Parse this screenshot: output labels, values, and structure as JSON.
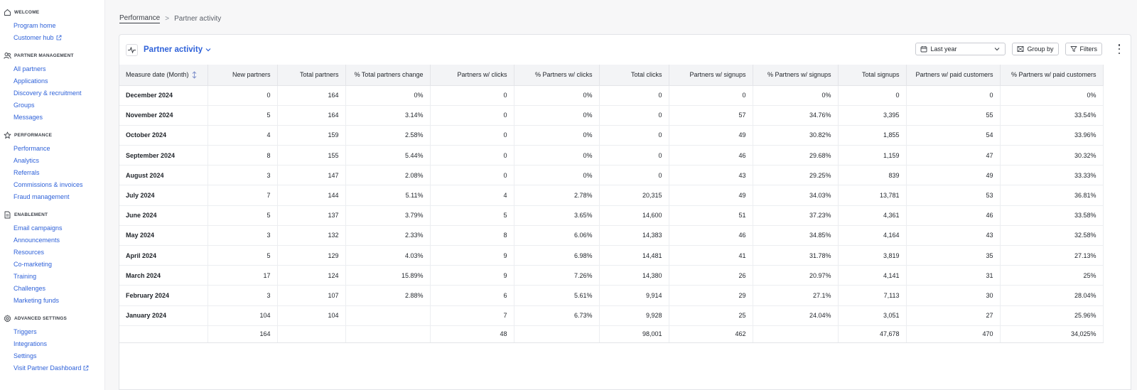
{
  "sidebar": {
    "sections": [
      {
        "title": "WELCOME",
        "icon": "home-icon",
        "items": [
          {
            "label": "Program home",
            "ext": false
          },
          {
            "label": "Customer hub",
            "ext": true
          }
        ]
      },
      {
        "title": "PARTNER MANAGEMENT",
        "icon": "users-icon",
        "items": [
          {
            "label": "All partners",
            "ext": false
          },
          {
            "label": "Applications",
            "ext": false
          },
          {
            "label": "Discovery & recruitment",
            "ext": false
          },
          {
            "label": "Groups",
            "ext": false
          },
          {
            "label": "Messages",
            "ext": false
          }
        ]
      },
      {
        "title": "PERFORMANCE",
        "icon": "star-icon",
        "items": [
          {
            "label": "Performance",
            "ext": false
          },
          {
            "label": "Analytics",
            "ext": false
          },
          {
            "label": "Referrals",
            "ext": false
          },
          {
            "label": "Commissions & invoices",
            "ext": false
          },
          {
            "label": "Fraud management",
            "ext": false
          }
        ]
      },
      {
        "title": "ENABLEMENT",
        "icon": "document-icon",
        "items": [
          {
            "label": "Email campaigns",
            "ext": false
          },
          {
            "label": "Announcements",
            "ext": false
          },
          {
            "label": "Resources",
            "ext": false
          },
          {
            "label": "Co-marketing",
            "ext": false
          },
          {
            "label": "Training",
            "ext": false
          },
          {
            "label": "Challenges",
            "ext": false
          },
          {
            "label": "Marketing funds",
            "ext": false
          }
        ]
      },
      {
        "title": "ADVANCED SETTINGS",
        "icon": "gear-icon",
        "items": [
          {
            "label": "Triggers",
            "ext": false
          },
          {
            "label": "Integrations",
            "ext": false
          },
          {
            "label": "Settings",
            "ext": false
          },
          {
            "label": "Visit Partner Dashboard",
            "ext": true
          }
        ]
      }
    ]
  },
  "breadcrumb": {
    "parent": "Performance",
    "separator": ">",
    "current": "Partner activity"
  },
  "report": {
    "title": "Partner activity"
  },
  "controls": {
    "date_range": "Last year",
    "group_by": "Group by",
    "filters": "Filters"
  },
  "colors": {
    "accent": "#2f62d9",
    "header_bg": "#f3f4f6"
  },
  "table": {
    "columns": [
      "Measure date (Month)",
      "New partners",
      "Total partners",
      "% Total partners change",
      "Partners w/ clicks",
      "% Partners w/ clicks",
      "Total clicks",
      "Partners w/ signups",
      "% Partners w/ signups",
      "Total signups",
      "Partners w/ paid customers",
      "% Partners w/ paid customers"
    ],
    "rows": [
      [
        "December 2024",
        "0",
        "164",
        "0%",
        "0",
        "0%",
        "0",
        "0",
        "0%",
        "0",
        "0",
        "0%"
      ],
      [
        "November 2024",
        "5",
        "164",
        "3.14%",
        "0",
        "0%",
        "0",
        "57",
        "34.76%",
        "3,395",
        "55",
        "33.54%"
      ],
      [
        "October 2024",
        "4",
        "159",
        "2.58%",
        "0",
        "0%",
        "0",
        "49",
        "30.82%",
        "1,855",
        "54",
        "33.96%"
      ],
      [
        "September 2024",
        "8",
        "155",
        "5.44%",
        "0",
        "0%",
        "0",
        "46",
        "29.68%",
        "1,159",
        "47",
        "30.32%"
      ],
      [
        "August 2024",
        "3",
        "147",
        "2.08%",
        "0",
        "0%",
        "0",
        "43",
        "29.25%",
        "839",
        "49",
        "33.33%"
      ],
      [
        "July 2024",
        "7",
        "144",
        "5.11%",
        "4",
        "2.78%",
        "20,315",
        "49",
        "34.03%",
        "13,781",
        "53",
        "36.81%"
      ],
      [
        "June 2024",
        "5",
        "137",
        "3.79%",
        "5",
        "3.65%",
        "14,600",
        "51",
        "37.23%",
        "4,361",
        "46",
        "33.58%"
      ],
      [
        "May 2024",
        "3",
        "132",
        "2.33%",
        "8",
        "6.06%",
        "14,383",
        "46",
        "34.85%",
        "4,164",
        "43",
        "32.58%"
      ],
      [
        "April 2024",
        "5",
        "129",
        "4.03%",
        "9",
        "6.98%",
        "14,481",
        "41",
        "31.78%",
        "3,819",
        "35",
        "27.13%"
      ],
      [
        "March 2024",
        "17",
        "124",
        "15.89%",
        "9",
        "7.26%",
        "14,380",
        "26",
        "20.97%",
        "4,141",
        "31",
        "25%"
      ],
      [
        "February 2024",
        "3",
        "107",
        "2.88%",
        "6",
        "5.61%",
        "9,914",
        "29",
        "27.1%",
        "7,113",
        "30",
        "28.04%"
      ],
      [
        "January 2024",
        "104",
        "104",
        "",
        "7",
        "6.73%",
        "9,928",
        "25",
        "24.04%",
        "3,051",
        "27",
        "25.96%"
      ]
    ],
    "totals": [
      "",
      "164",
      "",
      "",
      "48",
      "",
      "98,001",
      "462",
      "",
      "47,678",
      "470",
      "34,025%"
    ]
  }
}
